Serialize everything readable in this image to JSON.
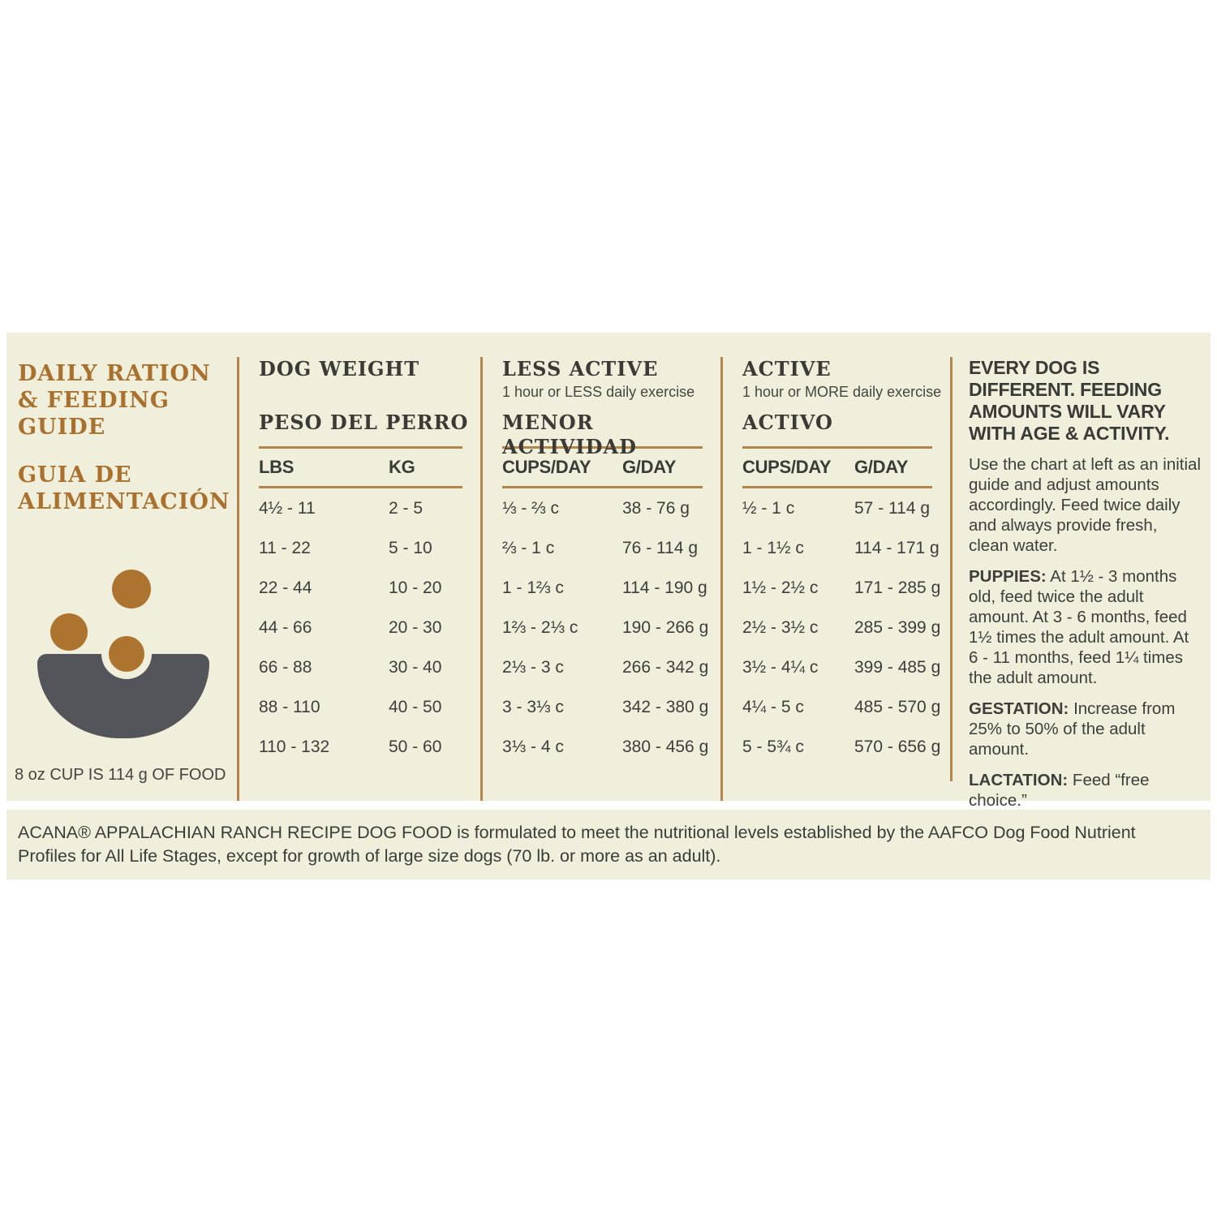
{
  "left": {
    "title_en": "DAILY RATION & FEEDING GUIDE",
    "title_es": "GUIA DE ALIMENTACIÓN",
    "cup_note": "8 oz CUP IS 114 g OF FOOD"
  },
  "table": {
    "groups": [
      {
        "title": "DOG WEIGHT",
        "subtitle": "",
        "title2": "PESO DEL PERRO",
        "col1": "LBS",
        "col2": "KG"
      },
      {
        "title": "LESS ACTIVE",
        "subtitle": "1 hour or LESS daily exercise",
        "title2": "MENOR ACTIVIDAD",
        "col1": "CUPS/DAY",
        "col2": "G/DAY"
      },
      {
        "title": "ACTIVE",
        "subtitle": "1 hour or MORE daily exercise",
        "title2": "ACTIVO",
        "col1": "CUPS/DAY",
        "col2": "G/DAY"
      }
    ],
    "rows": [
      {
        "lbs": "4½ - 11",
        "kg": "2 - 5",
        "la_cups": "⅓ - ⅔ c",
        "la_g": "38 - 76 g",
        "a_cups": "½ - 1 c",
        "a_g": "57 - 114 g"
      },
      {
        "lbs": "11 - 22",
        "kg": "5 - 10",
        "la_cups": "⅔ - 1 c",
        "la_g": "76 - 114 g",
        "a_cups": "1 - 1½ c",
        "a_g": "114 - 171 g"
      },
      {
        "lbs": "22 - 44",
        "kg": "10 - 20",
        "la_cups": "1 - 1⅔ c",
        "la_g": "114 - 190 g",
        "a_cups": "1½ - 2½ c",
        "a_g": "171 - 285 g"
      },
      {
        "lbs": "44 - 66",
        "kg": "20 - 30",
        "la_cups": "1⅔ - 2⅓ c",
        "la_g": "190 - 266 g",
        "a_cups": "2½ - 3½ c",
        "a_g": "285 - 399 g"
      },
      {
        "lbs": "66 - 88",
        "kg": "30 - 40",
        "la_cups": "2⅓ - 3 c",
        "la_g": "266 - 342 g",
        "a_cups": "3½ - 4¼ c",
        "a_g": "399 - 485 g"
      },
      {
        "lbs": "88 - 110",
        "kg": "40 - 50",
        "la_cups": "3 - 3⅓ c",
        "la_g": "342 - 380 g",
        "a_cups": "4¼ - 5 c",
        "a_g": "485 - 570 g"
      },
      {
        "lbs": "110 - 132",
        "kg": "50 - 60",
        "la_cups": "3⅓ - 4 c",
        "la_g": "380 - 456 g",
        "a_cups": "5 - 5¾ c",
        "a_g": "570 - 656 g"
      }
    ]
  },
  "info": {
    "heading": "EVERY DOG IS DIFFERENT. FEEDING AMOUNTS WILL VARY WITH AGE & ACTIVITY.",
    "p1": "Use the chart at left as an initial guide and adjust amounts accordingly. Feed twice daily and always provide fresh, clean water.",
    "puppies_label": "PUPPIES:",
    "puppies_text": "At 1½ - 3 months old, feed twice the adult amount. At 3 - 6 months, feed 1½ times the adult amount. At 6 - 11 months, feed 1¼ times the adult amount.",
    "gestation_label": "GESTATION:",
    "gestation_text": "Increase from 25% to 50% of the adult amount.",
    "lactation_label": "LACTATION:",
    "lactation_text": "Feed “free choice.”"
  },
  "footer": {
    "text": "ACANA® APPALACHIAN RANCH RECIPE DOG FOOD is formulated to meet the nutritional levels established by the AAFCO Dog Food Nutrient Profiles for All Life Stages, except for growth of large size dogs (70 lb. or more as an adult)."
  },
  "colors": {
    "accent_brown": "#a9712d",
    "line_brown": "#b2854c",
    "text_dark": "#3f3f3d",
    "panel_cream": "#f0efdc",
    "bowl_gray": "#54555a",
    "kibble_brown": "#ad742f"
  }
}
